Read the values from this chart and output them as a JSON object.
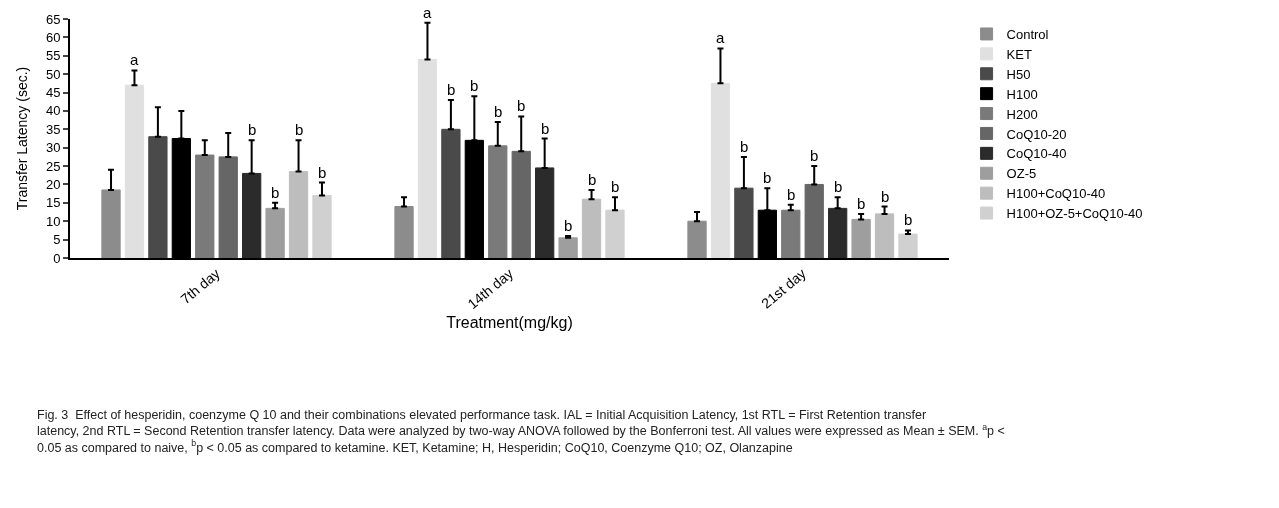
{
  "chart_data": {
    "type": "bar",
    "categories": [
      "7th day",
      "14th day",
      "21st day"
    ],
    "xlabel": "Treatment(mg/kg)",
    "ylabel": "Transfer Latency (sec.)",
    "ylim": [
      0,
      65
    ],
    "yticks": [
      0,
      5,
      10,
      15,
      20,
      25,
      30,
      35,
      40,
      45,
      50,
      55,
      60,
      65
    ],
    "legend": "right",
    "series": [
      {
        "name": "Control",
        "color": "#8c8c8c",
        "values": [
          18.5,
          14,
          10
        ],
        "errors": [
          [
            18.5,
            24
          ],
          [
            14,
            16.5
          ],
          [
            10,
            12.5
          ]
        ],
        "value_labels": [
          null,
          null,
          null
        ]
      },
      {
        "name": "KET",
        "color": "#e0e0e0",
        "values": [
          47,
          54,
          47.5
        ],
        "errors": [
          [
            47,
            51
          ],
          [
            54,
            64
          ],
          [
            47.5,
            57
          ]
        ],
        "value_labels": [
          "a",
          "a",
          "a"
        ]
      },
      {
        "name": "H50",
        "color": "#4a4a4a",
        "values": [
          33,
          35,
          19
        ],
        "errors": [
          [
            33,
            41
          ],
          [
            35,
            43
          ],
          [
            19,
            27.5
          ]
        ],
        "value_labels": [
          null,
          "b",
          "b"
        ]
      },
      {
        "name": "H100",
        "color": "#000000",
        "values": [
          32.5,
          32,
          13
        ],
        "errors": [
          [
            32.5,
            40
          ],
          [
            32,
            44
          ],
          [
            13,
            19
          ]
        ],
        "value_labels": [
          null,
          "b",
          "b"
        ]
      },
      {
        "name": "H200",
        "color": "#7a7a7a",
        "values": [
          28,
          30.5,
          13
        ],
        "errors": [
          [
            28,
            32
          ],
          [
            30.5,
            37
          ],
          [
            13,
            14.5
          ]
        ],
        "value_labels": [
          null,
          "b",
          "b"
        ]
      },
      {
        "name": "CoQ10-20",
        "color": "#666666",
        "values": [
          27.5,
          29,
          20
        ],
        "errors": [
          [
            27.5,
            34
          ],
          [
            29,
            38.5
          ],
          [
            20,
            25
          ]
        ],
        "value_labels": [
          null,
          "b",
          "b"
        ]
      },
      {
        "name": "CoQ10-40",
        "color": "#2b2b2b",
        "values": [
          23,
          24.5,
          13.5
        ],
        "errors": [
          [
            23,
            32
          ],
          [
            24.5,
            32.5
          ],
          [
            13.5,
            16.5
          ]
        ],
        "value_labels": [
          "b",
          "b",
          "b"
        ]
      },
      {
        "name": "OZ-5",
        "color": "#9e9e9e",
        "values": [
          13.5,
          5.5,
          10.5
        ],
        "errors": [
          [
            13.5,
            15
          ],
          [
            5.5,
            6
          ],
          [
            10.5,
            12
          ]
        ],
        "value_labels": [
          "b",
          "b",
          "b"
        ]
      },
      {
        "name": "H100+CoQ10-40",
        "color": "#bdbdbd",
        "values": [
          23.5,
          16,
          12
        ],
        "errors": [
          [
            23.5,
            32
          ],
          [
            16,
            18.5
          ],
          [
            12,
            14
          ]
        ],
        "value_labels": [
          "b",
          "b",
          "b"
        ]
      },
      {
        "name": "H100+OZ-5+CoQ10-40",
        "color": "#d0d0d0",
        "values": [
          17,
          13,
          6.5
        ],
        "errors": [
          [
            17,
            20.5
          ],
          [
            13,
            16.5
          ],
          [
            6.5,
            7.5
          ]
        ],
        "value_labels": [
          "b",
          "b",
          "b"
        ]
      }
    ],
    "annotations": [
      "Fig. 3  Effect of hesperidin, coenzyme Q 10 and their combinations elevated performance task. IAL = Initial Acquisition Latency, 1st RTL = First Retention transfer latency, 2nd RTL = Second Retention transfer latency. Data were analyzed by two-way ANOVA followed by the Bonferroni test. All values were expressed as Mean ± SEM. $^{a}$p < 0.05 as compared to naive, $^{b}$p < 0.05 as compared to ketamine. KET, Ketamine; H, Hesperidin; CoQ10, Coenzyme Q10; OZ, Olanzapine"
    ]
  }
}
